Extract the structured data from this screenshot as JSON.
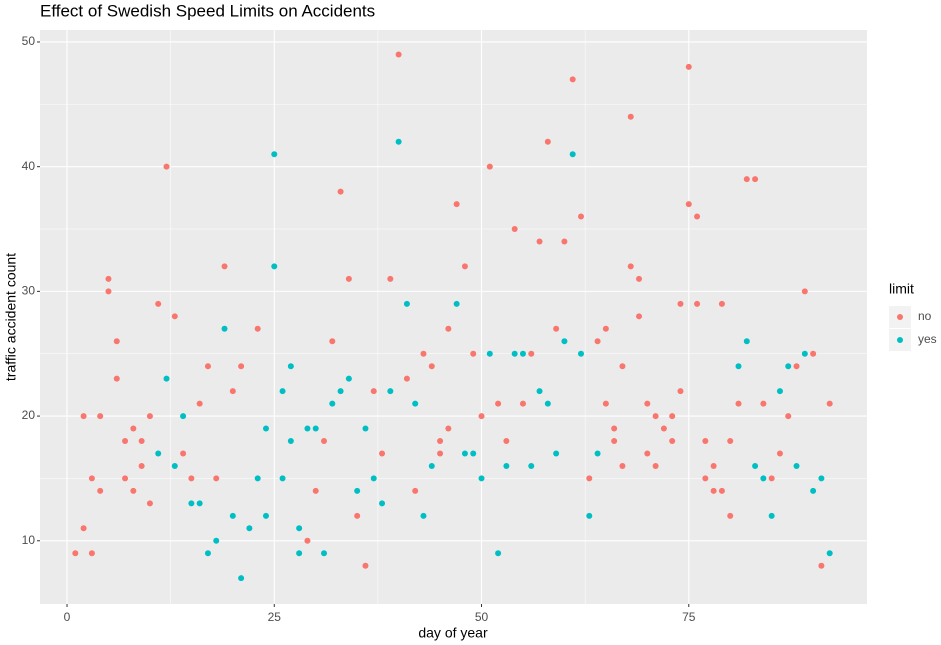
{
  "chart_data": {
    "type": "scatter",
    "title": "Effect of Swedish Speed Limits on Accidents",
    "x_label": "day of year",
    "y_label": "traffic accident count",
    "legend_title": "limit",
    "xlim": [
      -3.26,
      96.5
    ],
    "ylim": [
      4.93,
      50.96
    ],
    "xticks": [
      0,
      25,
      50,
      75
    ],
    "yticks": [
      10,
      20,
      30,
      40,
      50
    ],
    "grid": true,
    "legend": "right",
    "series": [
      {
        "name": "no",
        "color": "#F8766D",
        "x": [
          1,
          2,
          2,
          3,
          3,
          4,
          4,
          5,
          5,
          6,
          6,
          7,
          7,
          8,
          8,
          9,
          9,
          10,
          10,
          11,
          12,
          13,
          14,
          15,
          16,
          17,
          18,
          19,
          20,
          21,
          23,
          29,
          30,
          31,
          32,
          33,
          34,
          35,
          36,
          37,
          38,
          39,
          40,
          41,
          42,
          43,
          44,
          45,
          45,
          46,
          46,
          47,
          48,
          49,
          50,
          51,
          52,
          53,
          54,
          55,
          56,
          57,
          58,
          59,
          60,
          61,
          62,
          63,
          64,
          65,
          65,
          66,
          66,
          67,
          67,
          68,
          68,
          69,
          69,
          70,
          70,
          71,
          71,
          72,
          73,
          73,
          74,
          74,
          75,
          75,
          76,
          76,
          77,
          77,
          78,
          78,
          79,
          79,
          80,
          80,
          81,
          82,
          83,
          84,
          85,
          86,
          87,
          88,
          89,
          90,
          91,
          92
        ],
        "values": [
          9,
          20,
          11,
          15,
          9,
          20,
          14,
          31,
          30,
          26,
          23,
          18,
          15,
          19,
          14,
          18,
          16,
          20,
          13,
          29,
          40,
          28,
          17,
          15,
          21,
          24,
          15,
          32,
          22,
          24,
          27,
          10,
          14,
          18,
          26,
          38,
          31,
          12,
          8,
          22,
          17,
          31,
          49,
          23,
          14,
          25,
          24,
          18,
          17,
          27,
          19,
          37,
          32,
          25,
          20,
          40,
          21,
          18,
          35,
          21,
          25,
          34,
          42,
          27,
          34,
          47,
          36,
          15,
          26,
          27,
          21,
          19,
          18,
          24,
          16,
          44,
          32,
          31,
          28,
          21,
          17,
          20,
          16,
          19,
          20,
          18,
          29,
          22,
          48,
          37,
          36,
          29,
          18,
          15,
          16,
          14,
          29,
          14,
          18,
          12,
          21,
          39,
          39,
          21,
          15,
          17,
          20,
          24,
          30,
          25,
          8,
          21
        ]
      },
      {
        "name": "yes",
        "color": "#00BFC4",
        "x": [
          11,
          12,
          13,
          14,
          15,
          16,
          17,
          18,
          19,
          20,
          21,
          22,
          23,
          24,
          24,
          25,
          25,
          26,
          26,
          27,
          27,
          28,
          28,
          29,
          30,
          31,
          32,
          33,
          34,
          35,
          36,
          37,
          38,
          39,
          40,
          41,
          42,
          43,
          44,
          47,
          48,
          49,
          50,
          51,
          52,
          53,
          54,
          55,
          56,
          57,
          58,
          59,
          60,
          61,
          62,
          63,
          64,
          81,
          82,
          83,
          84,
          85,
          86,
          87,
          88,
          89,
          90,
          91,
          92
        ],
        "values": [
          17,
          23,
          16,
          20,
          13,
          13,
          9,
          10,
          27,
          12,
          7,
          11,
          15,
          19,
          12,
          41,
          32,
          22,
          15,
          24,
          18,
          11,
          9,
          19,
          19,
          9,
          21,
          22,
          23,
          14,
          19,
          15,
          13,
          22,
          42,
          29,
          21,
          12,
          16,
          29,
          17,
          17,
          15,
          25,
          9,
          16,
          25,
          25,
          16,
          22,
          21,
          17,
          26,
          41,
          25,
          12,
          17,
          24,
          26,
          16,
          15,
          12,
          22,
          24,
          16,
          25,
          14,
          15,
          9
        ]
      }
    ]
  }
}
